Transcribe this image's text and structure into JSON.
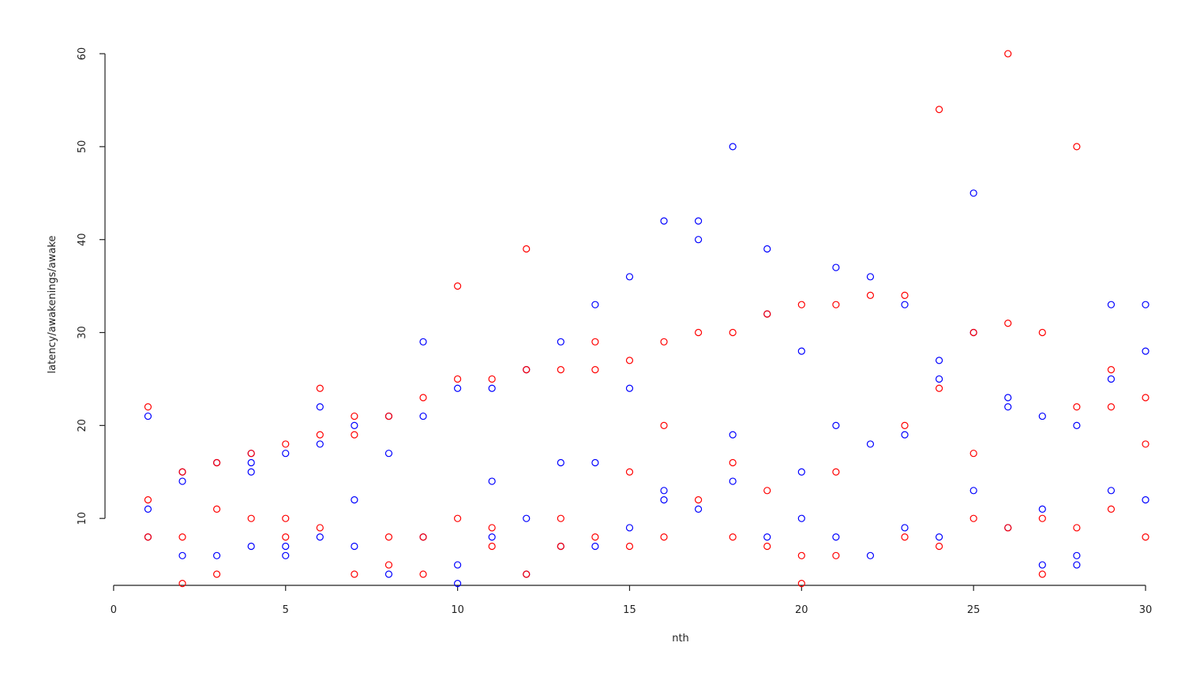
{
  "chart_data": {
    "type": "scatter",
    "x_label": "nth",
    "y_label": "latency/awakenings/awake",
    "xlim": [
      -0.25,
      30.16
    ],
    "ylim": [
      2.8,
      60.6
    ],
    "xticks": [
      0,
      5,
      10,
      15,
      20,
      25,
      30
    ],
    "yticks": [
      10,
      20,
      30,
      40,
      50,
      60
    ],
    "series": [
      {
        "color": "#0000ff",
        "x": [
          1,
          1,
          1,
          2,
          2,
          2,
          3,
          3,
          4,
          4,
          4,
          4,
          5,
          5,
          5,
          6,
          6,
          6,
          7,
          7,
          7,
          8,
          8,
          8,
          9,
          9,
          9,
          10,
          10,
          10,
          11,
          11,
          11,
          12,
          12,
          12,
          13,
          13,
          13,
          14,
          14,
          14,
          15,
          15,
          15,
          16,
          16,
          16,
          17,
          17,
          17,
          18,
          18,
          18,
          19,
          19,
          19,
          20,
          20,
          20,
          21,
          21,
          21,
          22,
          22,
          22,
          23,
          23,
          23,
          24,
          24,
          24,
          25,
          25,
          25,
          26,
          26,
          26,
          27,
          27,
          27,
          28,
          28,
          28,
          29,
          29,
          29,
          30,
          30,
          30
        ],
        "y": [
          21,
          11,
          8,
          15,
          14,
          6,
          16,
          6,
          17,
          16,
          15,
          7,
          17,
          7,
          6,
          22,
          18,
          8,
          20,
          12,
          7,
          21,
          17,
          4,
          29,
          21,
          8,
          24,
          5,
          3,
          24,
          14,
          8,
          26,
          10,
          4,
          29,
          16,
          7,
          33,
          16,
          7,
          36,
          24,
          9,
          42,
          13,
          12,
          42,
          40,
          11,
          50,
          19,
          14,
          39,
          32,
          8,
          28,
          15,
          10,
          37,
          20,
          8,
          36,
          18,
          6,
          33,
          19,
          9,
          27,
          25,
          8,
          45,
          30,
          13,
          23,
          22,
          9,
          21,
          11,
          5,
          20,
          6,
          5,
          33,
          25,
          13,
          33,
          28,
          12
        ]
      },
      {
        "color": "#ff0000",
        "x": [
          1,
          1,
          1,
          2,
          2,
          2,
          3,
          3,
          3,
          4,
          4,
          5,
          5,
          5,
          6,
          6,
          6,
          7,
          7,
          7,
          8,
          8,
          8,
          9,
          9,
          9,
          10,
          10,
          10,
          11,
          11,
          11,
          12,
          12,
          12,
          13,
          13,
          13,
          14,
          14,
          14,
          15,
          15,
          15,
          16,
          16,
          16,
          17,
          17,
          18,
          18,
          18,
          19,
          19,
          19,
          20,
          20,
          20,
          21,
          21,
          21,
          22,
          23,
          23,
          23,
          24,
          24,
          24,
          25,
          25,
          25,
          26,
          26,
          26,
          27,
          27,
          27,
          28,
          28,
          28,
          29,
          29,
          29,
          30,
          30,
          30
        ],
        "y": [
          22,
          12,
          8,
          15,
          8,
          3,
          16,
          11,
          4,
          17,
          10,
          18,
          10,
          8,
          24,
          19,
          9,
          21,
          19,
          4,
          21,
          8,
          5,
          23,
          8,
          4,
          35,
          25,
          10,
          25,
          9,
          7,
          39,
          26,
          4,
          26,
          10,
          7,
          29,
          26,
          8,
          27,
          15,
          7,
          29,
          20,
          8,
          30,
          12,
          30,
          16,
          8,
          32,
          13,
          7,
          33,
          6,
          3,
          33,
          15,
          6,
          34,
          34,
          20,
          8,
          54,
          24,
          7,
          30,
          17,
          10,
          60,
          31,
          9,
          30,
          10,
          4,
          50,
          22,
          9,
          26,
          22,
          11,
          23,
          18,
          8
        ]
      }
    ]
  }
}
